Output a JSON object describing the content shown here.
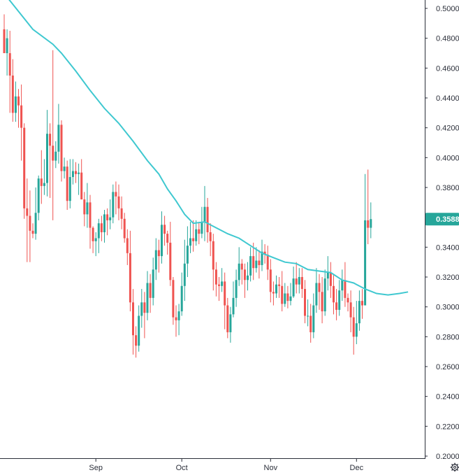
{
  "chart_data": {
    "type": "candlestick",
    "y_ticks": [
      "0.5000",
      "0.4800",
      "0.4600",
      "0.4400",
      "0.4200",
      "0.4000",
      "0.3800",
      "0.3600",
      "0.3400",
      "0.3200",
      "0.3000",
      "0.2800",
      "0.2600",
      "0.2400",
      "0.2200",
      "0.2000"
    ],
    "x_ticks": [
      {
        "label": "Sep",
        "index": 32
      },
      {
        "label": "Oct",
        "index": 62
      },
      {
        "label": "Nov",
        "index": 93
      },
      {
        "label": "Dec",
        "index": 123
      }
    ],
    "ylim": [
      0.2,
      0.5
    ],
    "last_price_label": "0.3588",
    "last_price": 0.3588,
    "colors": {
      "up": "#26a69a",
      "down": "#ef5350",
      "ma": "#3fc8d0",
      "price_tag": "#26a69a",
      "axis_line": "#2a2e39",
      "text": "#2a2e39"
    },
    "candles": [
      [
        0.486,
        0.47,
        0.496,
        0.48
      ],
      [
        0.47,
        0.48,
        0.486,
        0.455
      ],
      [
        0.47,
        0.455,
        0.485,
        0.43
      ],
      [
        0.455,
        0.43,
        0.466,
        0.424
      ],
      [
        0.43,
        0.441,
        0.451,
        0.424
      ],
      [
        0.441,
        0.435,
        0.446,
        0.42
      ],
      [
        0.435,
        0.42,
        0.449,
        0.398
      ],
      [
        0.42,
        0.366,
        0.423,
        0.359
      ],
      [
        0.366,
        0.361,
        0.386,
        0.33
      ],
      [
        0.361,
        0.351,
        0.378,
        0.33
      ],
      [
        0.351,
        0.349,
        0.356,
        0.346
      ],
      [
        0.349,
        0.363,
        0.38,
        0.345
      ],
      [
        0.363,
        0.386,
        0.388,
        0.358
      ],
      [
        0.386,
        0.381,
        0.405,
        0.369
      ],
      [
        0.381,
        0.383,
        0.399,
        0.375
      ],
      [
        0.383,
        0.416,
        0.432,
        0.374
      ],
      [
        0.416,
        0.408,
        0.423,
        0.373
      ],
      [
        0.408,
        0.398,
        0.472,
        0.358
      ],
      [
        0.398,
        0.404,
        0.411,
        0.393
      ],
      [
        0.404,
        0.422,
        0.436,
        0.396
      ],
      [
        0.422,
        0.391,
        0.425,
        0.384
      ],
      [
        0.391,
        0.394,
        0.4,
        0.386
      ],
      [
        0.394,
        0.371,
        0.398,
        0.365
      ],
      [
        0.371,
        0.387,
        0.399,
        0.366
      ],
      [
        0.387,
        0.391,
        0.399,
        0.382
      ],
      [
        0.391,
        0.389,
        0.397,
        0.383
      ],
      [
        0.389,
        0.39,
        0.396,
        0.375
      ],
      [
        0.39,
        0.372,
        0.399,
        0.372
      ],
      [
        0.372,
        0.362,
        0.377,
        0.354
      ],
      [
        0.362,
        0.37,
        0.383,
        0.353
      ],
      [
        0.37,
        0.353,
        0.375,
        0.339
      ],
      [
        0.353,
        0.344,
        0.354,
        0.336
      ],
      [
        0.344,
        0.346,
        0.35,
        0.334
      ],
      [
        0.346,
        0.356,
        0.359,
        0.336
      ],
      [
        0.356,
        0.35,
        0.361,
        0.344
      ],
      [
        0.35,
        0.362,
        0.365,
        0.343
      ],
      [
        0.362,
        0.358,
        0.366,
        0.348
      ],
      [
        0.358,
        0.36,
        0.372,
        0.352
      ],
      [
        0.36,
        0.377,
        0.382,
        0.356
      ],
      [
        0.377,
        0.374,
        0.384,
        0.362
      ],
      [
        0.374,
        0.366,
        0.382,
        0.358
      ],
      [
        0.366,
        0.359,
        0.374,
        0.352
      ],
      [
        0.359,
        0.346,
        0.363,
        0.343
      ],
      [
        0.346,
        0.336,
        0.352,
        0.328
      ],
      [
        0.336,
        0.303,
        0.351,
        0.297
      ],
      [
        0.303,
        0.281,
        0.312,
        0.268
      ],
      [
        0.281,
        0.274,
        0.287,
        0.266
      ],
      [
        0.274,
        0.294,
        0.301,
        0.27
      ],
      [
        0.294,
        0.303,
        0.312,
        0.286
      ],
      [
        0.303,
        0.296,
        0.31,
        0.279
      ],
      [
        0.296,
        0.316,
        0.324,
        0.291
      ],
      [
        0.316,
        0.306,
        0.322,
        0.296
      ],
      [
        0.306,
        0.325,
        0.333,
        0.301
      ],
      [
        0.325,
        0.338,
        0.346,
        0.318
      ],
      [
        0.338,
        0.334,
        0.345,
        0.323
      ],
      [
        0.334,
        0.355,
        0.364,
        0.329
      ],
      [
        0.355,
        0.349,
        0.361,
        0.341
      ],
      [
        0.349,
        0.343,
        0.351,
        0.335
      ],
      [
        0.343,
        0.318,
        0.357,
        0.314
      ],
      [
        0.318,
        0.293,
        0.32,
        0.288
      ],
      [
        0.293,
        0.291,
        0.301,
        0.28
      ],
      [
        0.291,
        0.297,
        0.302,
        0.281
      ],
      [
        0.297,
        0.314,
        0.323,
        0.294
      ],
      [
        0.314,
        0.329,
        0.345,
        0.304
      ],
      [
        0.329,
        0.341,
        0.354,
        0.32
      ],
      [
        0.341,
        0.346,
        0.357,
        0.336
      ],
      [
        0.346,
        0.344,
        0.358,
        0.337
      ],
      [
        0.344,
        0.352,
        0.358,
        0.341
      ],
      [
        0.352,
        0.349,
        0.357,
        0.342
      ],
      [
        0.349,
        0.357,
        0.367,
        0.346
      ],
      [
        0.357,
        0.367,
        0.381,
        0.344
      ],
      [
        0.367,
        0.35,
        0.373,
        0.343
      ],
      [
        0.35,
        0.344,
        0.356,
        0.334
      ],
      [
        0.344,
        0.325,
        0.349,
        0.311
      ],
      [
        0.325,
        0.315,
        0.33,
        0.307
      ],
      [
        0.315,
        0.314,
        0.32,
        0.304
      ],
      [
        0.314,
        0.317,
        0.326,
        0.31
      ],
      [
        0.317,
        0.301,
        0.323,
        0.285
      ],
      [
        0.301,
        0.283,
        0.306,
        0.279
      ],
      [
        0.283,
        0.295,
        0.3,
        0.276
      ],
      [
        0.295,
        0.306,
        0.317,
        0.293
      ],
      [
        0.306,
        0.318,
        0.325,
        0.3
      ],
      [
        0.318,
        0.329,
        0.34,
        0.314
      ],
      [
        0.329,
        0.325,
        0.332,
        0.315
      ],
      [
        0.325,
        0.318,
        0.329,
        0.306
      ],
      [
        0.318,
        0.321,
        0.33,
        0.311
      ],
      [
        0.321,
        0.334,
        0.34,
        0.317
      ],
      [
        0.334,
        0.326,
        0.343,
        0.318
      ],
      [
        0.326,
        0.331,
        0.34,
        0.323
      ],
      [
        0.331,
        0.328,
        0.338,
        0.319
      ],
      [
        0.328,
        0.337,
        0.345,
        0.324
      ],
      [
        0.337,
        0.335,
        0.342,
        0.329
      ],
      [
        0.335,
        0.325,
        0.341,
        0.318
      ],
      [
        0.325,
        0.31,
        0.332,
        0.303
      ],
      [
        0.31,
        0.309,
        0.317,
        0.301
      ],
      [
        0.309,
        0.315,
        0.321,
        0.306
      ],
      [
        0.315,
        0.314,
        0.32,
        0.306
      ],
      [
        0.314,
        0.302,
        0.324,
        0.297
      ],
      [
        0.302,
        0.309,
        0.316,
        0.3
      ],
      [
        0.309,
        0.304,
        0.314,
        0.299
      ],
      [
        0.304,
        0.307,
        0.316,
        0.301
      ],
      [
        0.307,
        0.319,
        0.327,
        0.306
      ],
      [
        0.319,
        0.315,
        0.33,
        0.309
      ],
      [
        0.315,
        0.32,
        0.326,
        0.309
      ],
      [
        0.32,
        0.312,
        0.326,
        0.306
      ],
      [
        0.312,
        0.294,
        0.318,
        0.289
      ],
      [
        0.294,
        0.294,
        0.305,
        0.287
      ],
      [
        0.294,
        0.283,
        0.302,
        0.276
      ],
      [
        0.283,
        0.301,
        0.309,
        0.279
      ],
      [
        0.301,
        0.316,
        0.326,
        0.296
      ],
      [
        0.316,
        0.31,
        0.322,
        0.298
      ],
      [
        0.31,
        0.297,
        0.32,
        0.289
      ],
      [
        0.297,
        0.319,
        0.325,
        0.294
      ],
      [
        0.319,
        0.323,
        0.334,
        0.311
      ],
      [
        0.323,
        0.314,
        0.33,
        0.306
      ],
      [
        0.314,
        0.303,
        0.322,
        0.295
      ],
      [
        0.303,
        0.298,
        0.312,
        0.291
      ],
      [
        0.298,
        0.311,
        0.318,
        0.294
      ],
      [
        0.311,
        0.318,
        0.325,
        0.304
      ],
      [
        0.318,
        0.306,
        0.33,
        0.3
      ],
      [
        0.306,
        0.303,
        0.309,
        0.297
      ],
      [
        0.303,
        0.293,
        0.311,
        0.283
      ],
      [
        0.293,
        0.28,
        0.3,
        0.268
      ],
      [
        0.28,
        0.289,
        0.304,
        0.275
      ],
      [
        0.289,
        0.304,
        0.311,
        0.284
      ],
      [
        0.304,
        0.301,
        0.312,
        0.292
      ],
      [
        0.301,
        0.358,
        0.389,
        0.301
      ],
      [
        0.358,
        0.353,
        0.392,
        0.342
      ],
      [
        0.353,
        0.3588,
        0.37,
        0.346
      ]
    ],
    "ma_values": [
      [
        0,
        0.51
      ],
      [
        10,
        0.486
      ],
      [
        17,
        0.476
      ],
      [
        20,
        0.47
      ],
      [
        25,
        0.458
      ],
      [
        30,
        0.445
      ],
      [
        35,
        0.433
      ],
      [
        40,
        0.423
      ],
      [
        45,
        0.411
      ],
      [
        50,
        0.398
      ],
      [
        54,
        0.389
      ],
      [
        57,
        0.379
      ],
      [
        60,
        0.371
      ],
      [
        63,
        0.362
      ],
      [
        66,
        0.356
      ],
      [
        70,
        0.357
      ],
      [
        74,
        0.353
      ],
      [
        78,
        0.349
      ],
      [
        82,
        0.346
      ],
      [
        86,
        0.341
      ],
      [
        90,
        0.336
      ],
      [
        94,
        0.333
      ],
      [
        98,
        0.33
      ],
      [
        102,
        0.329
      ],
      [
        106,
        0.325
      ],
      [
        110,
        0.324
      ],
      [
        114,
        0.323
      ],
      [
        118,
        0.318
      ],
      [
        122,
        0.316
      ],
      [
        126,
        0.312
      ],
      [
        130,
        0.309
      ],
      [
        134,
        0.308
      ],
      [
        138,
        0.309
      ],
      [
        141,
        0.31
      ]
    ]
  }
}
